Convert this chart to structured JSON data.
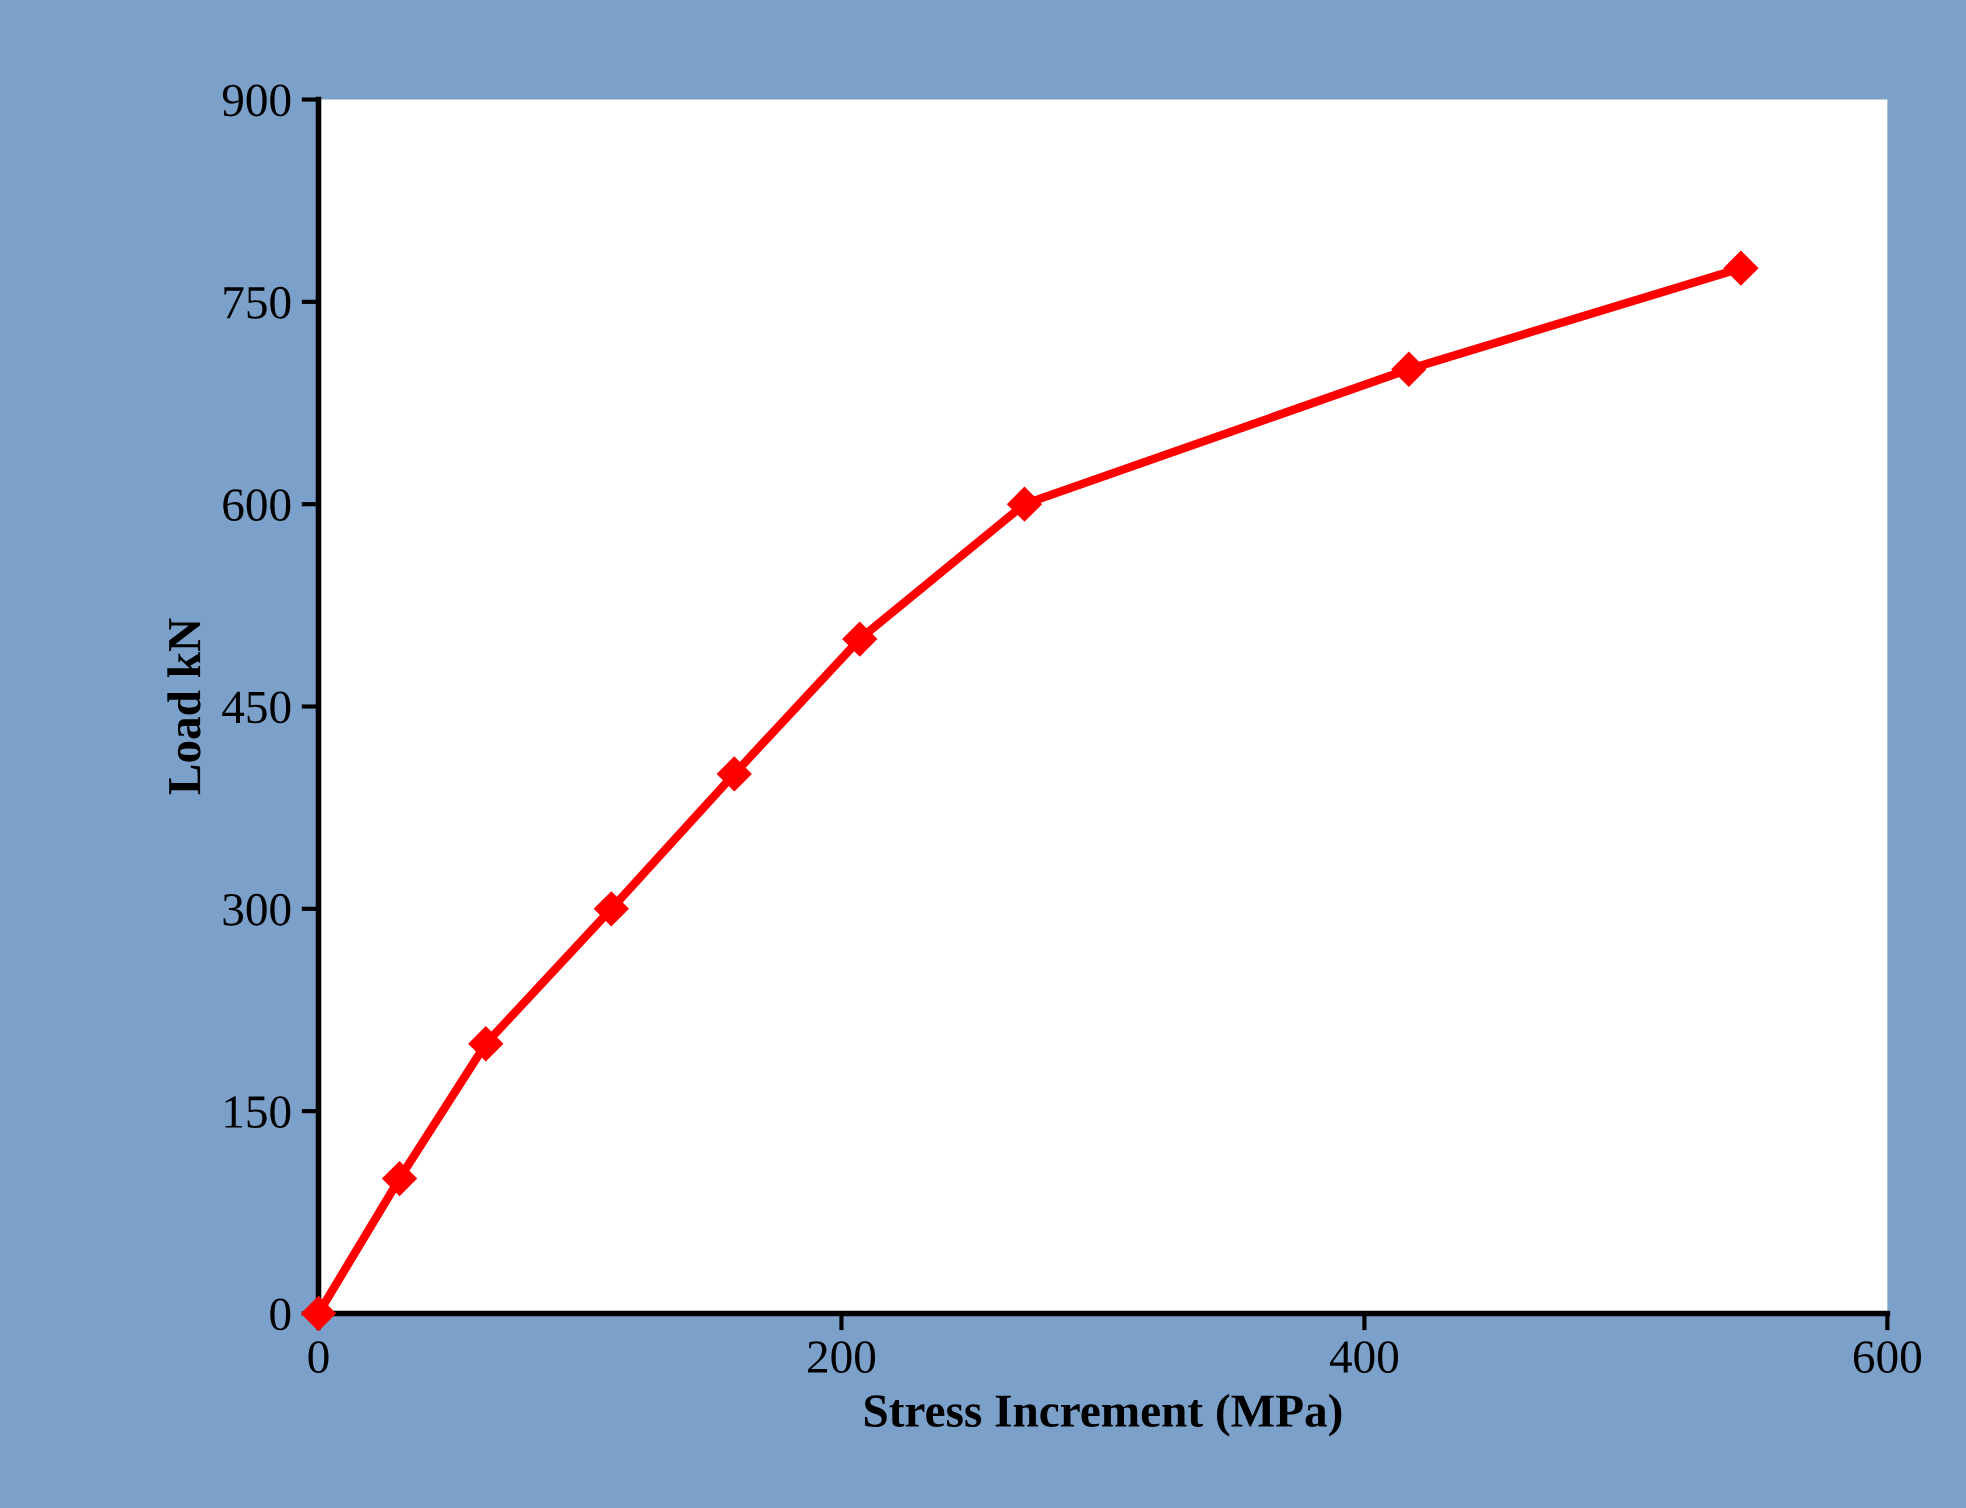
{
  "chart_data": {
    "type": "line",
    "xlabel": "Stress Increment (MPa)",
    "ylabel": "Load kN",
    "x": [
      0,
      31,
      64,
      112,
      159,
      207,
      270,
      417,
      544
    ],
    "series": [
      {
        "color": "#ff0000",
        "values": [
          0,
          100,
          200,
          300,
          400,
          500,
          600,
          700,
          775
        ]
      }
    ],
    "xlim": [
      0,
      600
    ],
    "xticks": [
      0,
      200,
      400,
      600
    ],
    "ylim": [
      0,
      900
    ],
    "yticks": [
      0,
      150,
      300,
      450,
      600,
      750,
      900
    ],
    "marker": "diamond",
    "line_style": "solid",
    "grid": false,
    "legend": false
  }
}
